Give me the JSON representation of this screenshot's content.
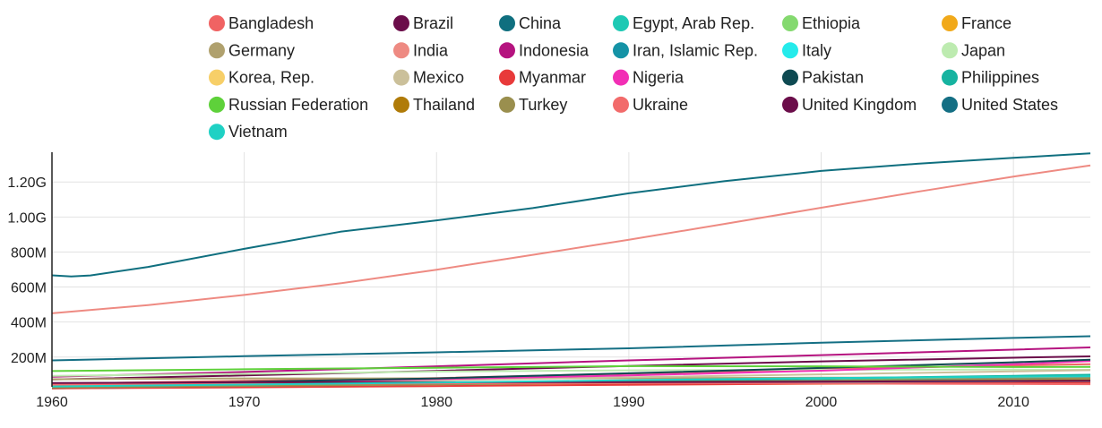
{
  "chart_data": {
    "type": "line",
    "title": "",
    "xlabel": "",
    "ylabel": "",
    "xlim": [
      1960,
      2014
    ],
    "ylim": [
      30000000,
      1370000000
    ],
    "x_ticks": [
      {
        "value": 1960,
        "label": "1960"
      },
      {
        "value": 1970,
        "label": "1970"
      },
      {
        "value": 1980,
        "label": "1980"
      },
      {
        "value": 1990,
        "label": "1990"
      },
      {
        "value": 2000,
        "label": "2000"
      },
      {
        "value": 2010,
        "label": "2010"
      }
    ],
    "y_ticks": [
      {
        "value": 200000000,
        "label": "200M"
      },
      {
        "value": 400000000,
        "label": "400M"
      },
      {
        "value": 600000000,
        "label": "600M"
      },
      {
        "value": 800000000,
        "label": "800M"
      },
      {
        "value": 1000000000,
        "label": "1.00G"
      },
      {
        "value": 1200000000,
        "label": "1.20G"
      }
    ],
    "grid": true,
    "legend": "top",
    "series": [
      {
        "name": "Bangladesh",
        "color": "#f06363",
        "points": [
          [
            1960,
            48000000
          ],
          [
            1970,
            65000000
          ],
          [
            1980,
            80000000
          ],
          [
            1990,
            105000000
          ],
          [
            2000,
            131000000
          ],
          [
            2010,
            152000000
          ],
          [
            2014,
            159000000
          ]
        ]
      },
      {
        "name": "Brazil",
        "color": "#6b0d4a",
        "points": [
          [
            1960,
            72000000
          ],
          [
            1970,
            95000000
          ],
          [
            1980,
            121000000
          ],
          [
            1990,
            149000000
          ],
          [
            2000,
            175000000
          ],
          [
            2010,
            196000000
          ],
          [
            2014,
            204000000
          ]
        ]
      },
      {
        "name": "China",
        "color": "#0f6f7f",
        "points": [
          [
            1960,
            667000000
          ],
          [
            1961,
            660000000
          ],
          [
            1962,
            666000000
          ],
          [
            1965,
            715000000
          ],
          [
            1970,
            818000000
          ],
          [
            1975,
            916000000
          ],
          [
            1980,
            981000000
          ],
          [
            1985,
            1051000000
          ],
          [
            1990,
            1135000000
          ],
          [
            1995,
            1205000000
          ],
          [
            2000,
            1263000000
          ],
          [
            2005,
            1304000000
          ],
          [
            2010,
            1338000000
          ],
          [
            2014,
            1364000000
          ]
        ]
      },
      {
        "name": "Egypt, Arab Rep.",
        "color": "#1ec9b4",
        "points": [
          [
            1960,
            27000000
          ],
          [
            1970,
            35000000
          ],
          [
            1980,
            44000000
          ],
          [
            1990,
            57000000
          ],
          [
            2000,
            68000000
          ],
          [
            2010,
            82000000
          ],
          [
            2014,
            89000000
          ]
        ]
      },
      {
        "name": "Ethiopia",
        "color": "#84d96f",
        "points": [
          [
            1960,
            22000000
          ],
          [
            1970,
            29000000
          ],
          [
            1980,
            35000000
          ],
          [
            1990,
            48000000
          ],
          [
            2000,
            66000000
          ],
          [
            2010,
            87000000
          ],
          [
            2014,
            97000000
          ]
        ]
      },
      {
        "name": "France",
        "color": "#f1a91a",
        "points": [
          [
            1960,
            46000000
          ],
          [
            1970,
            51000000
          ],
          [
            1980,
            54000000
          ],
          [
            1990,
            57000000
          ],
          [
            2000,
            59000000
          ],
          [
            2010,
            65000000
          ],
          [
            2014,
            66000000
          ]
        ]
      },
      {
        "name": "Germany",
        "color": "#b0a16e",
        "points": [
          [
            1960,
            73000000
          ],
          [
            1970,
            78000000
          ],
          [
            1980,
            78000000
          ],
          [
            1990,
            79000000
          ],
          [
            2000,
            82000000
          ],
          [
            2010,
            82000000
          ],
          [
            2014,
            81000000
          ]
        ]
      },
      {
        "name": "India",
        "color": "#ee8a82",
        "points": [
          [
            1960,
            450000000
          ],
          [
            1965,
            497000000
          ],
          [
            1970,
            555000000
          ],
          [
            1975,
            621000000
          ],
          [
            1980,
            699000000
          ],
          [
            1985,
            784000000
          ],
          [
            1990,
            870000000
          ],
          [
            1995,
            961000000
          ],
          [
            2000,
            1053000000
          ],
          [
            2005,
            1144000000
          ],
          [
            2010,
            1231000000
          ],
          [
            2014,
            1295000000
          ]
        ]
      },
      {
        "name": "Indonesia",
        "color": "#b5137f",
        "points": [
          [
            1960,
            88000000
          ],
          [
            1970,
            115000000
          ],
          [
            1980,
            147000000
          ],
          [
            1990,
            181000000
          ],
          [
            2000,
            211000000
          ],
          [
            2010,
            242000000
          ],
          [
            2014,
            255000000
          ]
        ]
      },
      {
        "name": "Iran, Islamic Rep.",
        "color": "#1593a6",
        "points": [
          [
            1960,
            22000000
          ],
          [
            1970,
            29000000
          ],
          [
            1980,
            39000000
          ],
          [
            1990,
            56000000
          ],
          [
            2000,
            66000000
          ],
          [
            2010,
            74000000
          ],
          [
            2014,
            78000000
          ]
        ]
      },
      {
        "name": "Italy",
        "color": "#25ebeb",
        "points": [
          [
            1960,
            50000000
          ],
          [
            1970,
            54000000
          ],
          [
            1980,
            56000000
          ],
          [
            1990,
            57000000
          ],
          [
            2000,
            57000000
          ],
          [
            2010,
            59000000
          ],
          [
            2014,
            61000000
          ]
        ]
      },
      {
        "name": "Japan",
        "color": "#bdebb0",
        "points": [
          [
            1960,
            93000000
          ],
          [
            1970,
            104000000
          ],
          [
            1980,
            117000000
          ],
          [
            1990,
            124000000
          ],
          [
            2000,
            127000000
          ],
          [
            2010,
            128000000
          ],
          [
            2014,
            127000000
          ]
        ]
      },
      {
        "name": "Korea, Rep.",
        "color": "#f7cf68",
        "points": [
          [
            1960,
            25000000
          ],
          [
            1970,
            32000000
          ],
          [
            1980,
            38000000
          ],
          [
            1990,
            43000000
          ],
          [
            2000,
            47000000
          ],
          [
            2010,
            49000000
          ],
          [
            2014,
            50000000
          ]
        ]
      },
      {
        "name": "Mexico",
        "color": "#cbc09a",
        "points": [
          [
            1960,
            38000000
          ],
          [
            1970,
            51000000
          ],
          [
            1980,
            68000000
          ],
          [
            1990,
            84000000
          ],
          [
            2000,
            101000000
          ],
          [
            2010,
            118000000
          ],
          [
            2014,
            125000000
          ]
        ]
      },
      {
        "name": "Myanmar",
        "color": "#e83a3a",
        "points": [
          [
            1960,
            21000000
          ],
          [
            1970,
            27000000
          ],
          [
            1980,
            34000000
          ],
          [
            1990,
            42000000
          ],
          [
            2000,
            48000000
          ],
          [
            2010,
            52000000
          ],
          [
            2014,
            53000000
          ]
        ]
      },
      {
        "name": "Nigeria",
        "color": "#f22fb5",
        "points": [
          [
            1960,
            45000000
          ],
          [
            1970,
            56000000
          ],
          [
            1980,
            74000000
          ],
          [
            1990,
            95000000
          ],
          [
            2000,
            122000000
          ],
          [
            2010,
            159000000
          ],
          [
            2014,
            177000000
          ]
        ]
      },
      {
        "name": "Pakistan",
        "color": "#0e4a52",
        "points": [
          [
            1960,
            44000000
          ],
          [
            1970,
            58000000
          ],
          [
            1980,
            78000000
          ],
          [
            1990,
            107000000
          ],
          [
            2000,
            138000000
          ],
          [
            2010,
            170000000
          ],
          [
            2014,
            185000000
          ]
        ]
      },
      {
        "name": "Philippines",
        "color": "#16b3a0",
        "points": [
          [
            1960,
            26000000
          ],
          [
            1970,
            35000000
          ],
          [
            1980,
            47000000
          ],
          [
            1990,
            62000000
          ],
          [
            2000,
            78000000
          ],
          [
            2010,
            93000000
          ],
          [
            2014,
            99000000
          ]
        ]
      },
      {
        "name": "Russian Federation",
        "color": "#5ed13a",
        "points": [
          [
            1960,
            120000000
          ],
          [
            1970,
            130000000
          ],
          [
            1980,
            139000000
          ],
          [
            1990,
            148000000
          ],
          [
            2000,
            147000000
          ],
          [
            2010,
            143000000
          ],
          [
            2014,
            144000000
          ]
        ]
      },
      {
        "name": "Thailand",
        "color": "#b07b08",
        "points": [
          [
            1960,
            27000000
          ],
          [
            1970,
            36000000
          ],
          [
            1980,
            47000000
          ],
          [
            1990,
            57000000
          ],
          [
            2000,
            63000000
          ],
          [
            2010,
            67000000
          ],
          [
            2014,
            68000000
          ]
        ]
      },
      {
        "name": "Turkey",
        "color": "#9a8f4e",
        "points": [
          [
            1960,
            28000000
          ],
          [
            1970,
            35000000
          ],
          [
            1980,
            44000000
          ],
          [
            1990,
            54000000
          ],
          [
            2000,
            64000000
          ],
          [
            2010,
            73000000
          ],
          [
            2014,
            77000000
          ]
        ]
      },
      {
        "name": "Ukraine",
        "color": "#f26b6b",
        "points": [
          [
            1960,
            43000000
          ],
          [
            1970,
            47000000
          ],
          [
            1980,
            50000000
          ],
          [
            1990,
            52000000
          ],
          [
            2000,
            49000000
          ],
          [
            2010,
            46000000
          ],
          [
            2014,
            45000000
          ]
        ]
      },
      {
        "name": "United Kingdom",
        "color": "#6b0d4a",
        "points": [
          [
            1960,
            52000000
          ],
          [
            1970,
            56000000
          ],
          [
            1980,
            56000000
          ],
          [
            1990,
            57000000
          ],
          [
            2000,
            59000000
          ],
          [
            2010,
            63000000
          ],
          [
            2014,
            65000000
          ]
        ]
      },
      {
        "name": "United States",
        "color": "#146f84",
        "points": [
          [
            1960,
            181000000
          ],
          [
            1970,
            205000000
          ],
          [
            1980,
            227000000
          ],
          [
            1990,
            250000000
          ],
          [
            2000,
            282000000
          ],
          [
            2010,
            309000000
          ],
          [
            2014,
            319000000
          ]
        ]
      },
      {
        "name": "Vietnam",
        "color": "#1fd1c4",
        "points": [
          [
            1960,
            32000000
          ],
          [
            1970,
            43000000
          ],
          [
            1980,
            54000000
          ],
          [
            1990,
            68000000
          ],
          [
            2000,
            80000000
          ],
          [
            2010,
            88000000
          ],
          [
            2014,
            91000000
          ]
        ]
      }
    ]
  }
}
